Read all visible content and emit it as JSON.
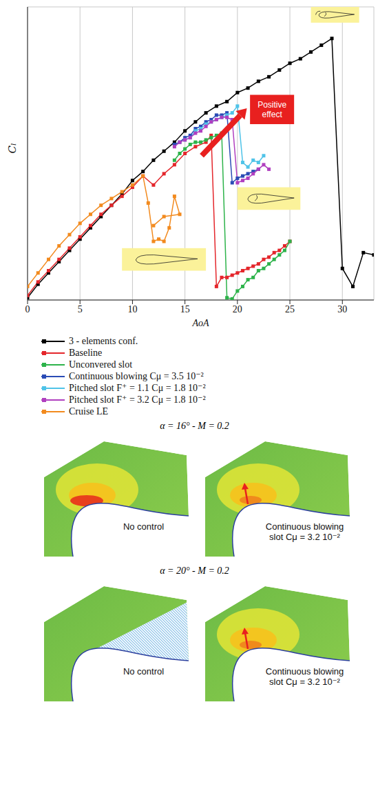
{
  "chart_data": {
    "type": "line",
    "x_label": "AoA",
    "y_label": "Cₗ",
    "xlim": [
      0,
      33
    ],
    "xticks": [
      0,
      5,
      10,
      15,
      20,
      25,
      30
    ],
    "ylim": [
      0,
      13
    ],
    "yticks": [
      0,
      1,
      2,
      3,
      4,
      5,
      6,
      7,
      8,
      9,
      10,
      11,
      12,
      13
    ],
    "grid": true,
    "tick_labels": "x",
    "legend": "bottom",
    "marker": "square",
    "annotations": [
      {
        "text": "Positive effect"
      }
    ],
    "series": [
      {
        "name": "3 - elements conf.",
        "color": "#000000",
        "x": [
          0,
          1,
          2,
          3,
          4,
          5,
          6,
          7,
          8,
          9,
          10,
          11,
          12,
          13,
          14,
          15,
          16,
          17,
          18,
          19,
          20,
          21,
          22,
          23,
          24,
          25,
          26,
          27,
          28,
          29,
          30,
          31,
          32,
          33
        ],
        "values": [
          0.1,
          0.7,
          1.2,
          1.7,
          2.2,
          2.7,
          3.2,
          3.7,
          4.2,
          4.7,
          5.3,
          5.7,
          6.2,
          6.6,
          7.0,
          7.5,
          7.9,
          8.3,
          8.6,
          8.8,
          9.2,
          9.4,
          9.7,
          9.9,
          10.2,
          10.5,
          10.7,
          11.0,
          11.3,
          11.6,
          1.4,
          0.6,
          2.1,
          2.0
        ]
      },
      {
        "name": "Baseline",
        "color": "#e4262b",
        "x": [
          0,
          1,
          2,
          3,
          4,
          5,
          6,
          7,
          8,
          9,
          10,
          11,
          12,
          13,
          14,
          15,
          16,
          17,
          17.5,
          18,
          18.5,
          19,
          19.5,
          20,
          20.5,
          21,
          21.5,
          22,
          22.5,
          23,
          23.5,
          24,
          24.5,
          25
        ],
        "values": [
          0.2,
          0.8,
          1.3,
          1.8,
          2.3,
          2.8,
          3.3,
          3.8,
          4.2,
          4.6,
          5.0,
          5.5,
          5.1,
          5.6,
          6.0,
          6.5,
          6.8,
          7.0,
          7.3,
          0.6,
          1.0,
          1.0,
          1.1,
          1.2,
          1.3,
          1.4,
          1.5,
          1.6,
          1.8,
          1.9,
          2.1,
          2.2,
          2.4,
          2.6
        ]
      },
      {
        "name": "Unconvered slot",
        "color": "#2db34a",
        "x": [
          14,
          14.5,
          15,
          15.5,
          16,
          16.5,
          17,
          17.5,
          18,
          18.5,
          19,
          19.5,
          20,
          20.5,
          21,
          21.5,
          22,
          22.5,
          23,
          23.5,
          24,
          24.5,
          25
        ],
        "values": [
          6.2,
          6.5,
          6.7,
          6.9,
          7.0,
          7.0,
          7.1,
          7.2,
          7.3,
          7.4,
          0.1,
          0.05,
          0.4,
          0.6,
          0.9,
          1.0,
          1.3,
          1.4,
          1.6,
          1.8,
          2.0,
          2.2,
          2.6
        ]
      },
      {
        "name": "Continuous blowing Cμ = 3.5 10⁻²",
        "color": "#2a4bb5",
        "x": [
          14,
          14.5,
          15,
          15.5,
          16,
          16.5,
          17,
          17.5,
          18,
          18.5,
          19,
          19.5,
          20,
          20.5,
          21,
          21.5,
          22
        ],
        "values": [
          6.9,
          7.0,
          7.2,
          7.3,
          7.6,
          7.7,
          7.9,
          8.0,
          8.2,
          8.2,
          8.3,
          5.2,
          5.4,
          5.5,
          5.6,
          5.7,
          5.8
        ]
      },
      {
        "name": "Pitched slot F⁺ = 1.1 Cμ = 1.8 10⁻²",
        "color": "#4fc3e8",
        "x": [
          15,
          15.5,
          16,
          16.5,
          17,
          17.5,
          18,
          18.5,
          19,
          19.5,
          20,
          20.5,
          21,
          21.5,
          22,
          22.5
        ],
        "values": [
          7.1,
          7.2,
          7.5,
          7.6,
          7.8,
          7.9,
          8.0,
          8.1,
          8.2,
          8.3,
          8.6,
          6.1,
          5.9,
          6.2,
          6.1,
          6.4
        ]
      },
      {
        "name": "Pitched slot F⁺ = 3.2 Cμ = 1.8 10⁻²",
        "color": "#b03fbf",
        "x": [
          14,
          14.5,
          15,
          15.5,
          16,
          16.5,
          17,
          17.5,
          18,
          18.5,
          19,
          19.5,
          20,
          20.5,
          21,
          21.5,
          22,
          22.5,
          23
        ],
        "values": [
          6.8,
          7.0,
          7.1,
          7.2,
          7.4,
          7.5,
          7.7,
          7.9,
          8.0,
          8.1,
          8.1,
          8.0,
          5.2,
          5.3,
          5.4,
          5.6,
          5.8,
          6.0,
          5.8
        ]
      },
      {
        "name": "Cruise LE",
        "color": "#f28a1e",
        "x": [
          0,
          1,
          2,
          3,
          4,
          5,
          6,
          7,
          8,
          9,
          10,
          11,
          11.5,
          12,
          12.5,
          13,
          13.5,
          14,
          14.5,
          13,
          12
        ],
        "values": [
          0.6,
          1.2,
          1.8,
          2.4,
          2.9,
          3.4,
          3.8,
          4.2,
          4.5,
          4.8,
          5.1,
          5.5,
          4.3,
          2.6,
          2.7,
          2.6,
          3.2,
          4.6,
          3.8,
          3.7,
          3.3
        ]
      }
    ]
  },
  "flow_fields": [
    {
      "title": "α = 16° - M = 0.2",
      "panels": [
        {
          "label": "No control",
          "control": false,
          "separated": false
        },
        {
          "label": "Continuous blowing slot Cμ = 3.2 10⁻²",
          "control": true,
          "separated": false
        }
      ]
    },
    {
      "title": "α = 20° - M = 0.2",
      "panels": [
        {
          "label": "No control",
          "control": false,
          "separated": true
        },
        {
          "label": "Continuous blowing slot Cμ = 3.2 10⁻²",
          "control": true,
          "separated": false
        }
      ]
    }
  ]
}
